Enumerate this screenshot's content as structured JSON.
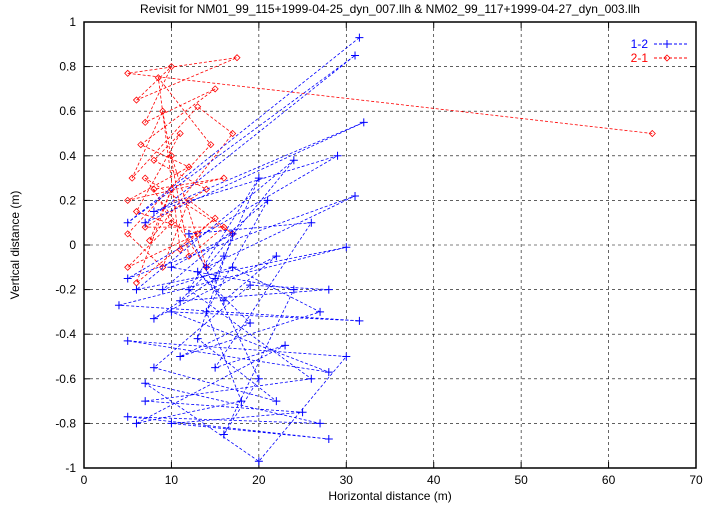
{
  "chart_data": {
    "type": "line",
    "title": "Revisit for NM01_99_115+1999-04-25_dyn_007.llh & NM02_99_117+1999-04-27_dyn_003.llh",
    "xlabel": "Horizontal distance (m)",
    "ylabel": "Vertical distance (m)",
    "xlim": [
      0,
      70
    ],
    "ylim": [
      -1,
      1
    ],
    "xticks": [
      0,
      10,
      20,
      30,
      40,
      50,
      60,
      70
    ],
    "yticks": [
      -1,
      -0.8,
      -0.6,
      -0.4,
      -0.2,
      0,
      0.2,
      0.4,
      0.6,
      0.8,
      1
    ],
    "grid": true,
    "legend_position": "top-right",
    "series": [
      {
        "name": "1-2",
        "color": "#0000ff",
        "marker": "plus",
        "points": [
          [
            31.5,
            0.93
          ],
          [
            5,
            0.1
          ],
          [
            31,
            0.85
          ],
          [
            7,
            0.1
          ],
          [
            32,
            0.55
          ],
          [
            8,
            0.15
          ],
          [
            29,
            0.4
          ],
          [
            5,
            -0.15
          ],
          [
            31,
            0.22
          ],
          [
            14,
            -0.1
          ],
          [
            24,
            0.38
          ],
          [
            6,
            -0.2
          ],
          [
            30,
            -0.01
          ],
          [
            4,
            -0.27
          ],
          [
            31.5,
            -0.34
          ],
          [
            10,
            -0.3
          ],
          [
            28,
            -0.57
          ],
          [
            5,
            -0.43
          ],
          [
            30,
            -0.5
          ],
          [
            20,
            -0.97
          ],
          [
            7,
            -0.62
          ],
          [
            27,
            -0.8
          ],
          [
            5,
            -0.77
          ],
          [
            28,
            -0.87
          ],
          [
            10,
            -0.8
          ],
          [
            25,
            -0.75
          ],
          [
            7,
            -0.7
          ],
          [
            26,
            -0.6
          ],
          [
            12,
            -0.2
          ],
          [
            20,
            0.3
          ],
          [
            15,
            -0.15
          ],
          [
            8,
            -0.33
          ],
          [
            22,
            -0.05
          ],
          [
            16,
            -0.25
          ],
          [
            13,
            -0.12
          ],
          [
            19,
            -0.35
          ],
          [
            11,
            -0.5
          ],
          [
            27,
            -0.3
          ],
          [
            17,
            -0.1
          ],
          [
            9,
            -0.2
          ],
          [
            21,
            0.2
          ],
          [
            14,
            -0.3
          ],
          [
            18,
            -0.7
          ],
          [
            6,
            -0.8
          ],
          [
            23,
            -0.45
          ],
          [
            15,
            -0.55
          ],
          [
            26,
            0.1
          ],
          [
            12,
            0.05
          ],
          [
            20,
            -0.6
          ],
          [
            16,
            -0.85
          ],
          [
            24,
            -0.2
          ],
          [
            10,
            -0.1
          ],
          [
            17,
            0.05
          ],
          [
            13,
            -0.42
          ],
          [
            22,
            -0.7
          ],
          [
            8,
            -0.55
          ],
          [
            19,
            -0.18
          ],
          [
            28,
            -0.2
          ],
          [
            11,
            -0.25
          ],
          [
            16,
            -0.05
          ]
        ]
      },
      {
        "name": "2-1",
        "color": "#ff0000",
        "marker": "diamond",
        "points": [
          [
            65,
            0.5
          ],
          [
            5,
            0.77
          ],
          [
            17.5,
            0.84
          ],
          [
            6,
            0.65
          ],
          [
            10,
            0.8
          ],
          [
            7,
            0.55
          ],
          [
            15,
            0.7
          ],
          [
            6.5,
            0.45
          ],
          [
            12,
            0.35
          ],
          [
            5,
            0.2
          ],
          [
            16,
            0.3
          ],
          [
            8,
            0.25
          ],
          [
            10,
            0.1
          ],
          [
            5,
            -0.1
          ],
          [
            13,
            0.05
          ],
          [
            6,
            0.15
          ],
          [
            11,
            0.5
          ],
          [
            8,
            0.38
          ],
          [
            14,
            0.25
          ],
          [
            7,
            0.08
          ],
          [
            16,
            0.08
          ],
          [
            12,
            -0.05
          ],
          [
            9,
            0.6
          ],
          [
            5.5,
            0.3
          ],
          [
            13,
            0.62
          ],
          [
            17,
            0.5
          ],
          [
            7.5,
            0.02
          ],
          [
            10,
            0.25
          ],
          [
            6,
            -0.17
          ],
          [
            15,
            0.12
          ],
          [
            11,
            -0.02
          ],
          [
            8.5,
            0.75
          ],
          [
            14.5,
            0.45
          ],
          [
            5,
            0.05
          ],
          [
            9,
            -0.1
          ],
          [
            12,
            0.2
          ],
          [
            17,
            0.05
          ],
          [
            7,
            0.3
          ],
          [
            14,
            -0.1
          ],
          [
            10,
            0.4
          ]
        ]
      }
    ]
  }
}
